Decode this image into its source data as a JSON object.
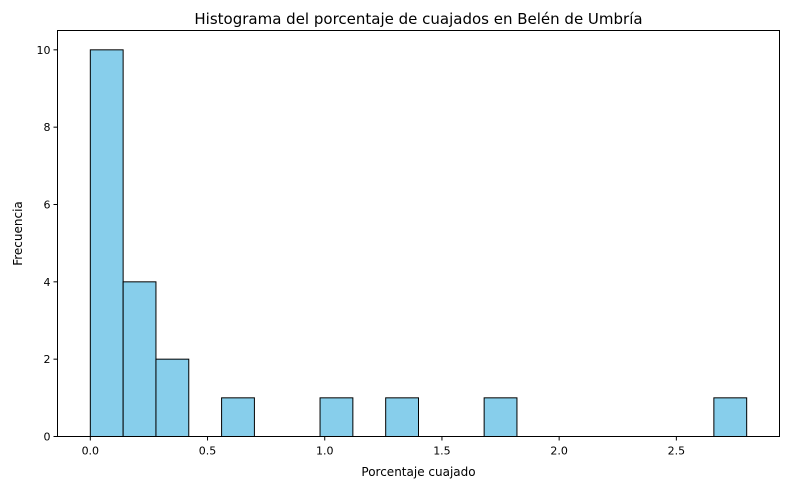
{
  "chart_data": {
    "type": "bar",
    "title": "Histograma del porcentaje de cuajados en Belén de Umbría",
    "xlabel": "Porcentaje cuajado",
    "ylabel": "Frecuencia",
    "xlim": [
      -0.14,
      2.94
    ],
    "ylim": [
      0,
      10.5
    ],
    "x_ticks": [
      0.0,
      0.5,
      1.0,
      1.5,
      2.0,
      2.5
    ],
    "x_tick_labels": [
      "0.0",
      "0.5",
      "1.0",
      "1.5",
      "2.0",
      "2.5"
    ],
    "y_ticks": [
      0,
      2,
      4,
      6,
      8,
      10
    ],
    "y_tick_labels": [
      "0",
      "2",
      "4",
      "6",
      "8",
      "10"
    ],
    "grid": false,
    "bins": [
      {
        "start": 0.0,
        "end": 0.14,
        "count": 10
      },
      {
        "start": 0.14,
        "end": 0.28,
        "count": 4
      },
      {
        "start": 0.28,
        "end": 0.42,
        "count": 2
      },
      {
        "start": 0.42,
        "end": 0.56,
        "count": 0
      },
      {
        "start": 0.56,
        "end": 0.7,
        "count": 1
      },
      {
        "start": 0.7,
        "end": 0.84,
        "count": 0
      },
      {
        "start": 0.84,
        "end": 0.98,
        "count": 0
      },
      {
        "start": 0.98,
        "end": 1.12,
        "count": 1
      },
      {
        "start": 1.12,
        "end": 1.26,
        "count": 0
      },
      {
        "start": 1.26,
        "end": 1.4,
        "count": 1
      },
      {
        "start": 1.4,
        "end": 1.54,
        "count": 0
      },
      {
        "start": 1.54,
        "end": 1.68,
        "count": 0
      },
      {
        "start": 1.68,
        "end": 1.82,
        "count": 1
      },
      {
        "start": 1.82,
        "end": 1.96,
        "count": 0
      },
      {
        "start": 1.96,
        "end": 2.1,
        "count": 0
      },
      {
        "start": 2.1,
        "end": 2.24,
        "count": 0
      },
      {
        "start": 2.24,
        "end": 2.38,
        "count": 0
      },
      {
        "start": 2.38,
        "end": 2.52,
        "count": 0
      },
      {
        "start": 2.52,
        "end": 2.66,
        "count": 0
      },
      {
        "start": 2.66,
        "end": 2.8,
        "count": 1
      }
    ],
    "colors": {
      "bar_fill": "#87ceeb",
      "bar_edge": "#000000"
    }
  }
}
